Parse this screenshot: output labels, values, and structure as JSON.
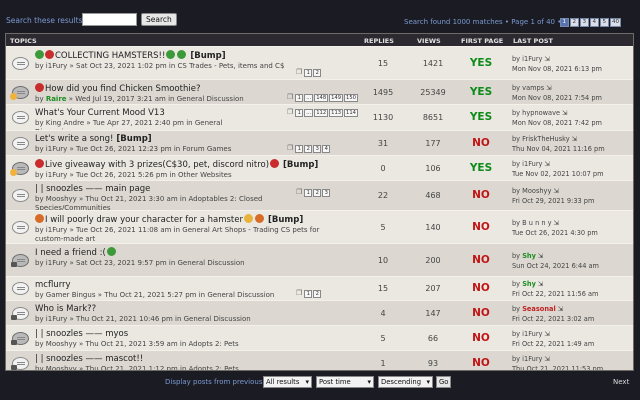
{
  "search": {
    "label": "Search these results:",
    "value": "",
    "button": "Search",
    "found_text": "Search found 1000 matches • Page 1 of 40 •",
    "pages": [
      "1",
      "2",
      "3",
      "4",
      "5",
      "40"
    ],
    "current_page": "1"
  },
  "columns": {
    "topics": "TOPICS",
    "replies": "REPLIES",
    "views": "VIEWS",
    "first_page": "FIRST PAGE",
    "last_post": "LAST POST"
  },
  "rows": [
    {
      "title": "COLLECTING HAMSTERS!!",
      "suffix": "[Bump]",
      "emojis": [
        "g",
        "r"
      ],
      "emojis_after": [
        "g",
        "g"
      ],
      "meta": "by i1Fury » Sat Oct 23, 2021 1:02 pm in CS Trades - Pets, items and C$",
      "meta2": "",
      "pages": [
        "1",
        "2"
      ],
      "replies": "15",
      "views": "1421",
      "first_page": "YES",
      "last_by": "by i1Fury",
      "last_time": "Mon Nov 08, 2021 6:13 pm",
      "last_style": ""
    },
    {
      "title": "How did you find Chicken Smoothie?",
      "suffix": "",
      "emojis": [
        "r"
      ],
      "emojis_after": [],
      "meta_by": "by ",
      "meta_user": "Raire",
      "meta_rest": " » Wed Jul 19, 2017 3:21 am in General Discussion",
      "meta2": "",
      "pages": [
        "1",
        "...",
        "148",
        "149",
        "150"
      ],
      "replies": "1495",
      "views": "25349",
      "first_page": "YES",
      "last_by": "by vamps",
      "last_time": "Mon Nov 08, 2021 7:54 pm",
      "last_style": ""
    },
    {
      "title": "What's Your Current Mood V13",
      "suffix": "",
      "emojis": [],
      "emojis_after": [],
      "meta": "by King Andre » Tue Apr 27, 2021 2:40 pm in General",
      "meta2": "Discussion",
      "pages": [
        "1",
        "...",
        "112",
        "113",
        "114"
      ],
      "replies": "1130",
      "views": "8651",
      "first_page": "YES",
      "last_by": "by hypnowave",
      "last_time": "Mon Nov 08, 2021 7:42 pm",
      "last_style": ""
    },
    {
      "title": "Let's write a song!",
      "suffix": "[Bump]",
      "emojis": [],
      "emojis_after": [],
      "meta": "by i1Fury » Tue Oct 26, 2021 12:23 pm in Forum Games",
      "meta2": "",
      "pages": [
        "1",
        "2",
        "3",
        "4"
      ],
      "replies": "31",
      "views": "177",
      "first_page": "NO",
      "last_by": "by FriskTheHusky",
      "last_time": "Thu Nov 04, 2021 11:16 pm",
      "last_style": ""
    },
    {
      "title": "Live giveaway with 3 prizes(C$30, pet, discord nitro)",
      "suffix": "[Bump]",
      "emojis": [
        "r"
      ],
      "emojis_after": [
        "r"
      ],
      "meta": "by i1Fury » Tue Oct 26, 2021 5:26 pm in Other Websites",
      "meta2": "",
      "pages": [],
      "replies": "0",
      "views": "106",
      "first_page": "YES",
      "last_by": "by i1Fury",
      "last_time": "Tue Nov 02, 2021 10:07 pm",
      "last_style": ""
    },
    {
      "title": "| | snoozles —— main page",
      "suffix": "",
      "emojis": [],
      "emojis_after": [],
      "meta": "by Mooshyy » Thu Oct 21, 2021 3:30 am in Adoptables 2: Closed",
      "meta2": "Species/Communities",
      "pages": [
        "1",
        "2",
        "3"
      ],
      "replies": "22",
      "views": "468",
      "first_page": "NO",
      "last_by": "by Mooshyy",
      "last_time": "Fri Oct 29, 2021 9:33 pm",
      "last_style": ""
    },
    {
      "title": "I will poorly draw your character for a hamster",
      "suffix": "[Bump]",
      "emojis": [
        "o"
      ],
      "emojis_after": [
        "y",
        "o"
      ],
      "meta": "by i1Fury » Tue Oct 26, 2021 11:08 am in General Art Shops - Trading CS pets for",
      "meta2": "custom-made art",
      "pages": [],
      "replies": "5",
      "views": "140",
      "first_page": "NO",
      "last_by": "by B u n n y",
      "last_time": "Tue Oct 26, 2021 4:30 pm",
      "last_style": ""
    },
    {
      "title": "I need a friend :(",
      "suffix": "",
      "emojis": [],
      "emojis_after": [
        "g"
      ],
      "meta": "by i1Fury » Sat Oct 23, 2021 9:57 pm in General Discussion",
      "meta2": "",
      "pages": [],
      "replies": "10",
      "views": "200",
      "first_page": "NO",
      "last_by": "Shy",
      "last_time": "Sun Oct 24, 2021 6:44 am",
      "last_style": "g"
    },
    {
      "title": "mcflurry",
      "suffix": "",
      "emojis": [],
      "emojis_after": [],
      "meta": "by Gamer Bingus » Thu Oct 21, 2021 5:27 pm in General Discussion",
      "meta2": "",
      "pages": [
        "1",
        "2"
      ],
      "replies": "15",
      "views": "207",
      "first_page": "NO",
      "last_by": "Shy",
      "last_time": "Fri Oct 22, 2021 11:56 am",
      "last_style": "g"
    },
    {
      "title": "Who is Mark??",
      "suffix": "",
      "emojis": [],
      "emojis_after": [],
      "meta": "by i1Fury » Thu Oct 21, 2021 10:46 pm in General Discussion",
      "meta2": "",
      "pages": [],
      "replies": "4",
      "views": "147",
      "first_page": "NO",
      "last_by": "Seasonal",
      "last_time": "Fri Oct 22, 2021 3:02 am",
      "last_style": "r"
    },
    {
      "title": "| | snoozles —— myos",
      "suffix": "",
      "emojis": [],
      "emojis_after": [],
      "meta": "by Mooshyy » Thu Oct 21, 2021 3:59 am in Adopts 2: Pets",
      "meta2": "",
      "pages": [],
      "replies": "5",
      "views": "66",
      "first_page": "NO",
      "last_by": "by i1Fury",
      "last_time": "Fri Oct 22, 2021 1:49 am",
      "last_style": ""
    },
    {
      "title": "| | snoozles —— mascot!!",
      "suffix": "",
      "emojis": [],
      "emojis_after": [],
      "meta": "by Mooshyy » Thu Oct 21, 2021 1:12 pm in Adopts 2: Pets",
      "meta2": "",
      "pages": [],
      "replies": "1",
      "views": "93",
      "first_page": "NO",
      "last_by": "by i1Fury",
      "last_time": "Thu Oct 21, 2021 11:53 pm",
      "last_style": ""
    }
  ],
  "bottom": {
    "display_label": "Display posts from previous",
    "filter_value": "All results",
    "sort_by": "Post time",
    "order": "Descending",
    "go": "Go",
    "next": "Next"
  },
  "colors": {
    "background": "#1b1b24",
    "yes": "#0c8b19",
    "no": "#c01414",
    "link": "#7a9ad0"
  }
}
